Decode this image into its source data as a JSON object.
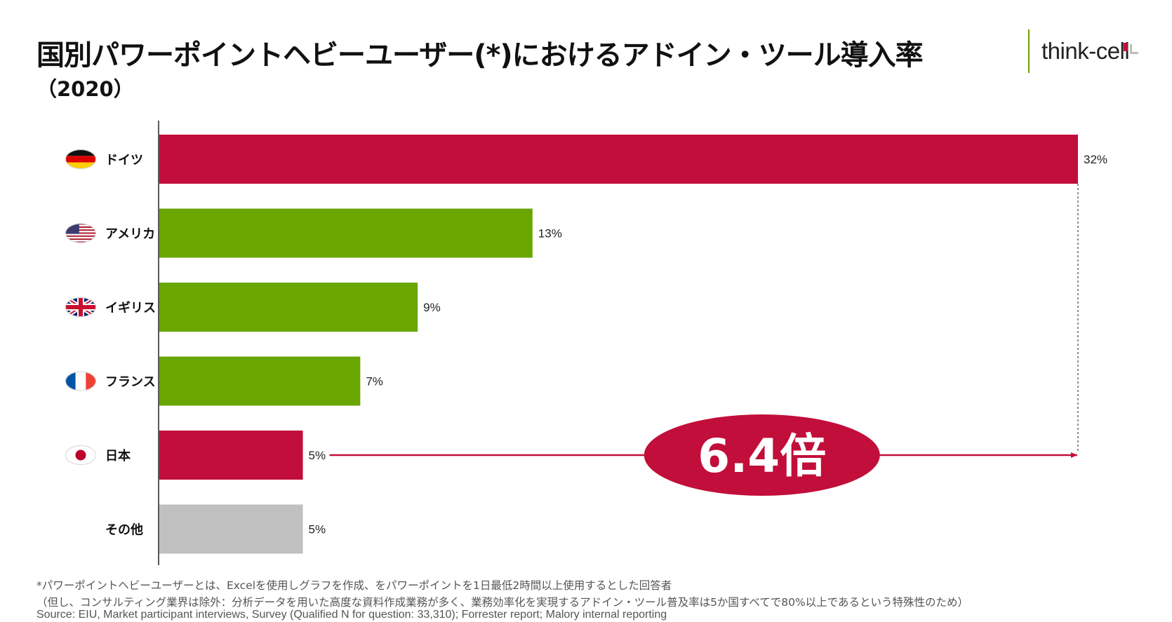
{
  "title": "国別パワーポイントヘビーユーザー(*)におけるアドイン・ツール導入率",
  "subtitle": "（2020）",
  "logo": {
    "text": "think-cell"
  },
  "colors": {
    "highlight": "#c20e3a",
    "normal": "#6aa600",
    "other": "#c0c0c0",
    "axis": "#222222"
  },
  "chart_data": {
    "type": "bar",
    "orientation": "horizontal",
    "categories": [
      "ドイツ",
      "アメリカ",
      "イギリス",
      "フランス",
      "日本",
      "その他"
    ],
    "values": [
      32,
      13,
      9,
      7,
      5,
      5
    ],
    "labels": [
      "32%",
      "13%",
      "9%",
      "7%",
      "5%",
      "5%"
    ],
    "flags": [
      "germany-flag",
      "usa-flag",
      "uk-flag",
      "france-flag",
      "japan-flag",
      ""
    ],
    "bar_colors": [
      "highlight",
      "normal",
      "normal",
      "normal",
      "highlight",
      "other"
    ],
    "unit": "%",
    "xlim": [
      0,
      32
    ],
    "annotation": {
      "text": "6.4倍",
      "from": "日本",
      "to": "ドイツ",
      "ratio": 6.4
    }
  },
  "footnotes": [
    "*パワーポイントヘビーユーザーとは、Excelを使用しグラフを作成、をパワーポイントを1日最低2時間以上使用するとした回答者",
    "（但し、コンサルティング業界は除外：分析データを用いた高度な資料作成業務が多く、業務効率化を実現するアドイン・ツール普及率は5か国すべてで80%以上であるという特殊性のため）",
    "Source: EIU, Market participant interviews, Survey (Qualified N for question: 33,310); Forrester report; Malory internal reporting"
  ]
}
